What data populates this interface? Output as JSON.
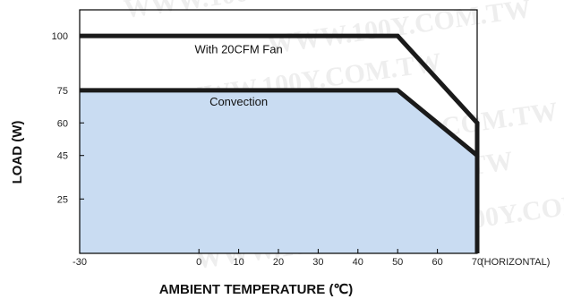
{
  "chart_data": {
    "type": "line",
    "title": "",
    "xlabel": "AMBIENT TEMPERATURE (℃)",
    "ylabel": "LOAD (W)",
    "x_unit_note": "(HORIZONTAL)",
    "x_ticks": [
      -30,
      0,
      10,
      20,
      30,
      40,
      50,
      60,
      70
    ],
    "y_ticks": [
      25,
      45,
      60,
      75,
      100
    ],
    "xlim": [
      -30,
      70
    ],
    "ylim": [
      0,
      112
    ],
    "grid": false,
    "series": [
      {
        "name": "With 20CFM Fan",
        "points": [
          [
            -30,
            100
          ],
          [
            50,
            100
          ],
          [
            70,
            60
          ],
          [
            70,
            0
          ]
        ],
        "color": "#1a1a1a",
        "fill": null
      },
      {
        "name": "Convection",
        "points": [
          [
            -30,
            75
          ],
          [
            50,
            75
          ],
          [
            70,
            45
          ],
          [
            70,
            0
          ]
        ],
        "color": "#1a1a1a",
        "fill": "#c9dcf2"
      }
    ],
    "annotations": [
      {
        "text": "With 20CFM Fan",
        "x": 10,
        "y": 92
      },
      {
        "text": "Convection",
        "x": 10,
        "y": 68
      }
    ],
    "watermark": "WWW.100Y.COM.TW"
  }
}
